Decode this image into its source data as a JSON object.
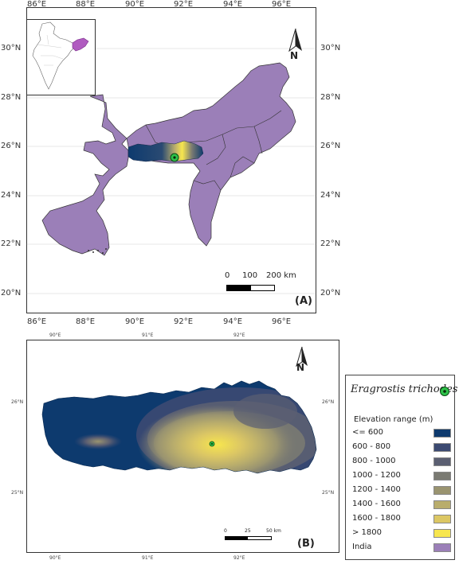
{
  "panel_a": {
    "label": "(A)",
    "x_ticks": [
      "86°E",
      "88°E",
      "90°E",
      "92°E",
      "94°E",
      "96°E"
    ],
    "y_ticks": [
      "30°N",
      "28°N",
      "26°N",
      "24°N",
      "22°N",
      "20°N"
    ],
    "scale": {
      "labels": [
        "0",
        "100",
        "200 km"
      ]
    },
    "north": "N"
  },
  "panel_b": {
    "label": "(B)",
    "x_ticks": [
      "90°E",
      "91°E",
      "92°E"
    ],
    "y_ticks": [
      "26°N",
      "25°N"
    ],
    "scale": {
      "labels": [
        "0",
        "25",
        "50 km"
      ]
    },
    "north": "N"
  },
  "legend": {
    "species": "Eragrostis trichodes",
    "subtitle": "Elevation range (m)",
    "classes": [
      {
        "label": "<= 600",
        "color": "#0d3a6e"
      },
      {
        "label": "600 - 800",
        "color": "#3c4a72"
      },
      {
        "label": "800 - 1000",
        "color": "#5b5f72"
      },
      {
        "label": "1000 - 1200",
        "color": "#7a7a72"
      },
      {
        "label": "1200 - 1400",
        "color": "#9a9470"
      },
      {
        "label": "1400 - 1600",
        "color": "#b9ad6c"
      },
      {
        "label": "1600 - 1800",
        "color": "#dcc764"
      },
      {
        "label": "> 1800",
        "color": "#f7e64e"
      },
      {
        "label": "India",
        "color": "#9b7fb8"
      }
    ]
  },
  "colors": {
    "india": "#9b7fb8",
    "species_marker": "#2ec24a"
  }
}
